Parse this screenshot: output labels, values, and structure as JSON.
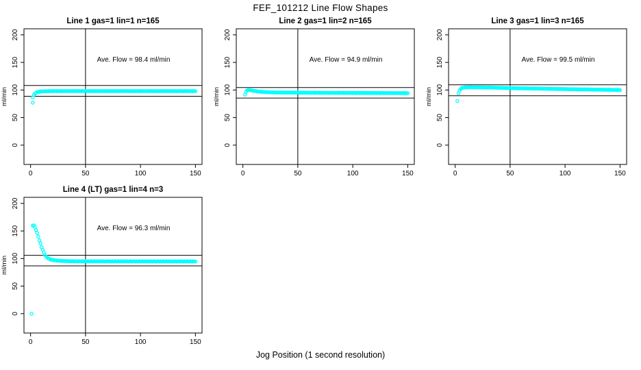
{
  "title": "FEF_101212  Line Flow Shapes",
  "xlabel": "Jog Position (1 second resolution)",
  "colors": {
    "points": "#00FFFF",
    "lines": "#000000",
    "background": "#FFFFFF"
  },
  "chart_data": [
    {
      "type": "scatter",
      "title": "Line 1 gas=1 lin=1 n=165",
      "annotation": "Ave. Flow =  98.4  ml/min",
      "ave_flow_ml_min": 98.4,
      "ylabel": "ml/min",
      "x_ticks": [
        0,
        50,
        100,
        150
      ],
      "y_ticks": [
        0,
        50,
        100,
        150,
        200
      ],
      "xlim": [
        -6,
        156
      ],
      "ylim": [
        -35,
        211
      ],
      "vline_x": 50,
      "hlines_y": [
        108.2,
        88.6
      ],
      "x_start": 2,
      "x_end": 150,
      "keypoints": [
        [
          2,
          87
        ],
        [
          3,
          91
        ],
        [
          4,
          93.5
        ],
        [
          5,
          95
        ],
        [
          6,
          96
        ],
        [
          8,
          97
        ],
        [
          10,
          97.5
        ],
        [
          20,
          98
        ],
        [
          150,
          98
        ]
      ],
      "outliers": [
        [
          2,
          77
        ]
      ]
    },
    {
      "type": "scatter",
      "title": "Line 2 gas=1 lin=2 n=165",
      "annotation": "Ave. Flow =  94.9  ml/min",
      "ave_flow_ml_min": 94.9,
      "ylabel": "ml/min",
      "x_ticks": [
        0,
        50,
        100,
        150
      ],
      "y_ticks": [
        0,
        50,
        100,
        150,
        200
      ],
      "xlim": [
        -6,
        156
      ],
      "ylim": [
        -35,
        211
      ],
      "vline_x": 50,
      "hlines_y": [
        104.4,
        85.4
      ],
      "x_start": 2,
      "x_end": 150,
      "keypoints": [
        [
          2,
          92
        ],
        [
          3,
          97
        ],
        [
          4,
          99.5
        ],
        [
          5,
          100
        ],
        [
          7,
          99.5
        ],
        [
          10,
          98.5
        ],
        [
          15,
          97
        ],
        [
          20,
          96.3
        ],
        [
          30,
          95.5
        ],
        [
          60,
          95
        ],
        [
          100,
          94.7
        ],
        [
          150,
          94.3
        ]
      ],
      "outliers": []
    },
    {
      "type": "scatter",
      "title": "Line 3 gas=1 lin=3 n=165",
      "annotation": "Ave. Flow =  99.5  ml/min",
      "ave_flow_ml_min": 99.5,
      "ylabel": "ml/min",
      "x_ticks": [
        0,
        50,
        100,
        150
      ],
      "y_ticks": [
        0,
        50,
        100,
        150,
        200
      ],
      "xlim": [
        -6,
        156
      ],
      "ylim": [
        -35,
        211
      ],
      "vline_x": 50,
      "hlines_y": [
        109.5,
        89.6
      ],
      "x_start": 3,
      "x_end": 150,
      "keypoints": [
        [
          3,
          94
        ],
        [
          4,
          99
        ],
        [
          5,
          102
        ],
        [
          6,
          103.5
        ],
        [
          8,
          104.5
        ],
        [
          12,
          105
        ],
        [
          30,
          104.5
        ],
        [
          60,
          103
        ],
        [
          90,
          102
        ],
        [
          120,
          101
        ],
        [
          150,
          100
        ]
      ],
      "outliers": [
        [
          2,
          80
        ]
      ]
    },
    {
      "type": "scatter",
      "title": "Line 4 (LT) gas=1 lin=4 n=3",
      "annotation": "Ave. Flow =  96.3  ml/min",
      "ave_flow_ml_min": 96.3,
      "ylabel": "ml/min",
      "x_ticks": [
        0,
        50,
        100,
        150
      ],
      "y_ticks": [
        0,
        50,
        100,
        150,
        200
      ],
      "xlim": [
        -6,
        156
      ],
      "ylim": [
        -35,
        211
      ],
      "vline_x": 50,
      "hlines_y": [
        105.9,
        86.7
      ],
      "x_start": 2,
      "x_end": 150,
      "keypoints": [
        [
          2,
          160
        ],
        [
          3,
          160
        ],
        [
          4,
          157
        ],
        [
          5,
          152
        ],
        [
          6,
          146
        ],
        [
          7,
          140
        ],
        [
          8,
          133
        ],
        [
          9,
          127
        ],
        [
          10,
          121
        ],
        [
          11,
          116
        ],
        [
          12,
          111
        ],
        [
          13,
          107
        ],
        [
          14,
          104
        ],
        [
          15,
          102
        ],
        [
          16,
          100.5
        ],
        [
          17,
          99.5
        ],
        [
          18,
          98.5
        ],
        [
          20,
          97.5
        ],
        [
          23,
          96.5
        ],
        [
          26,
          96
        ],
        [
          30,
          95.5
        ],
        [
          40,
          95
        ],
        [
          150,
          94.8
        ]
      ],
      "outliers": [
        [
          1,
          0
        ]
      ]
    }
  ]
}
